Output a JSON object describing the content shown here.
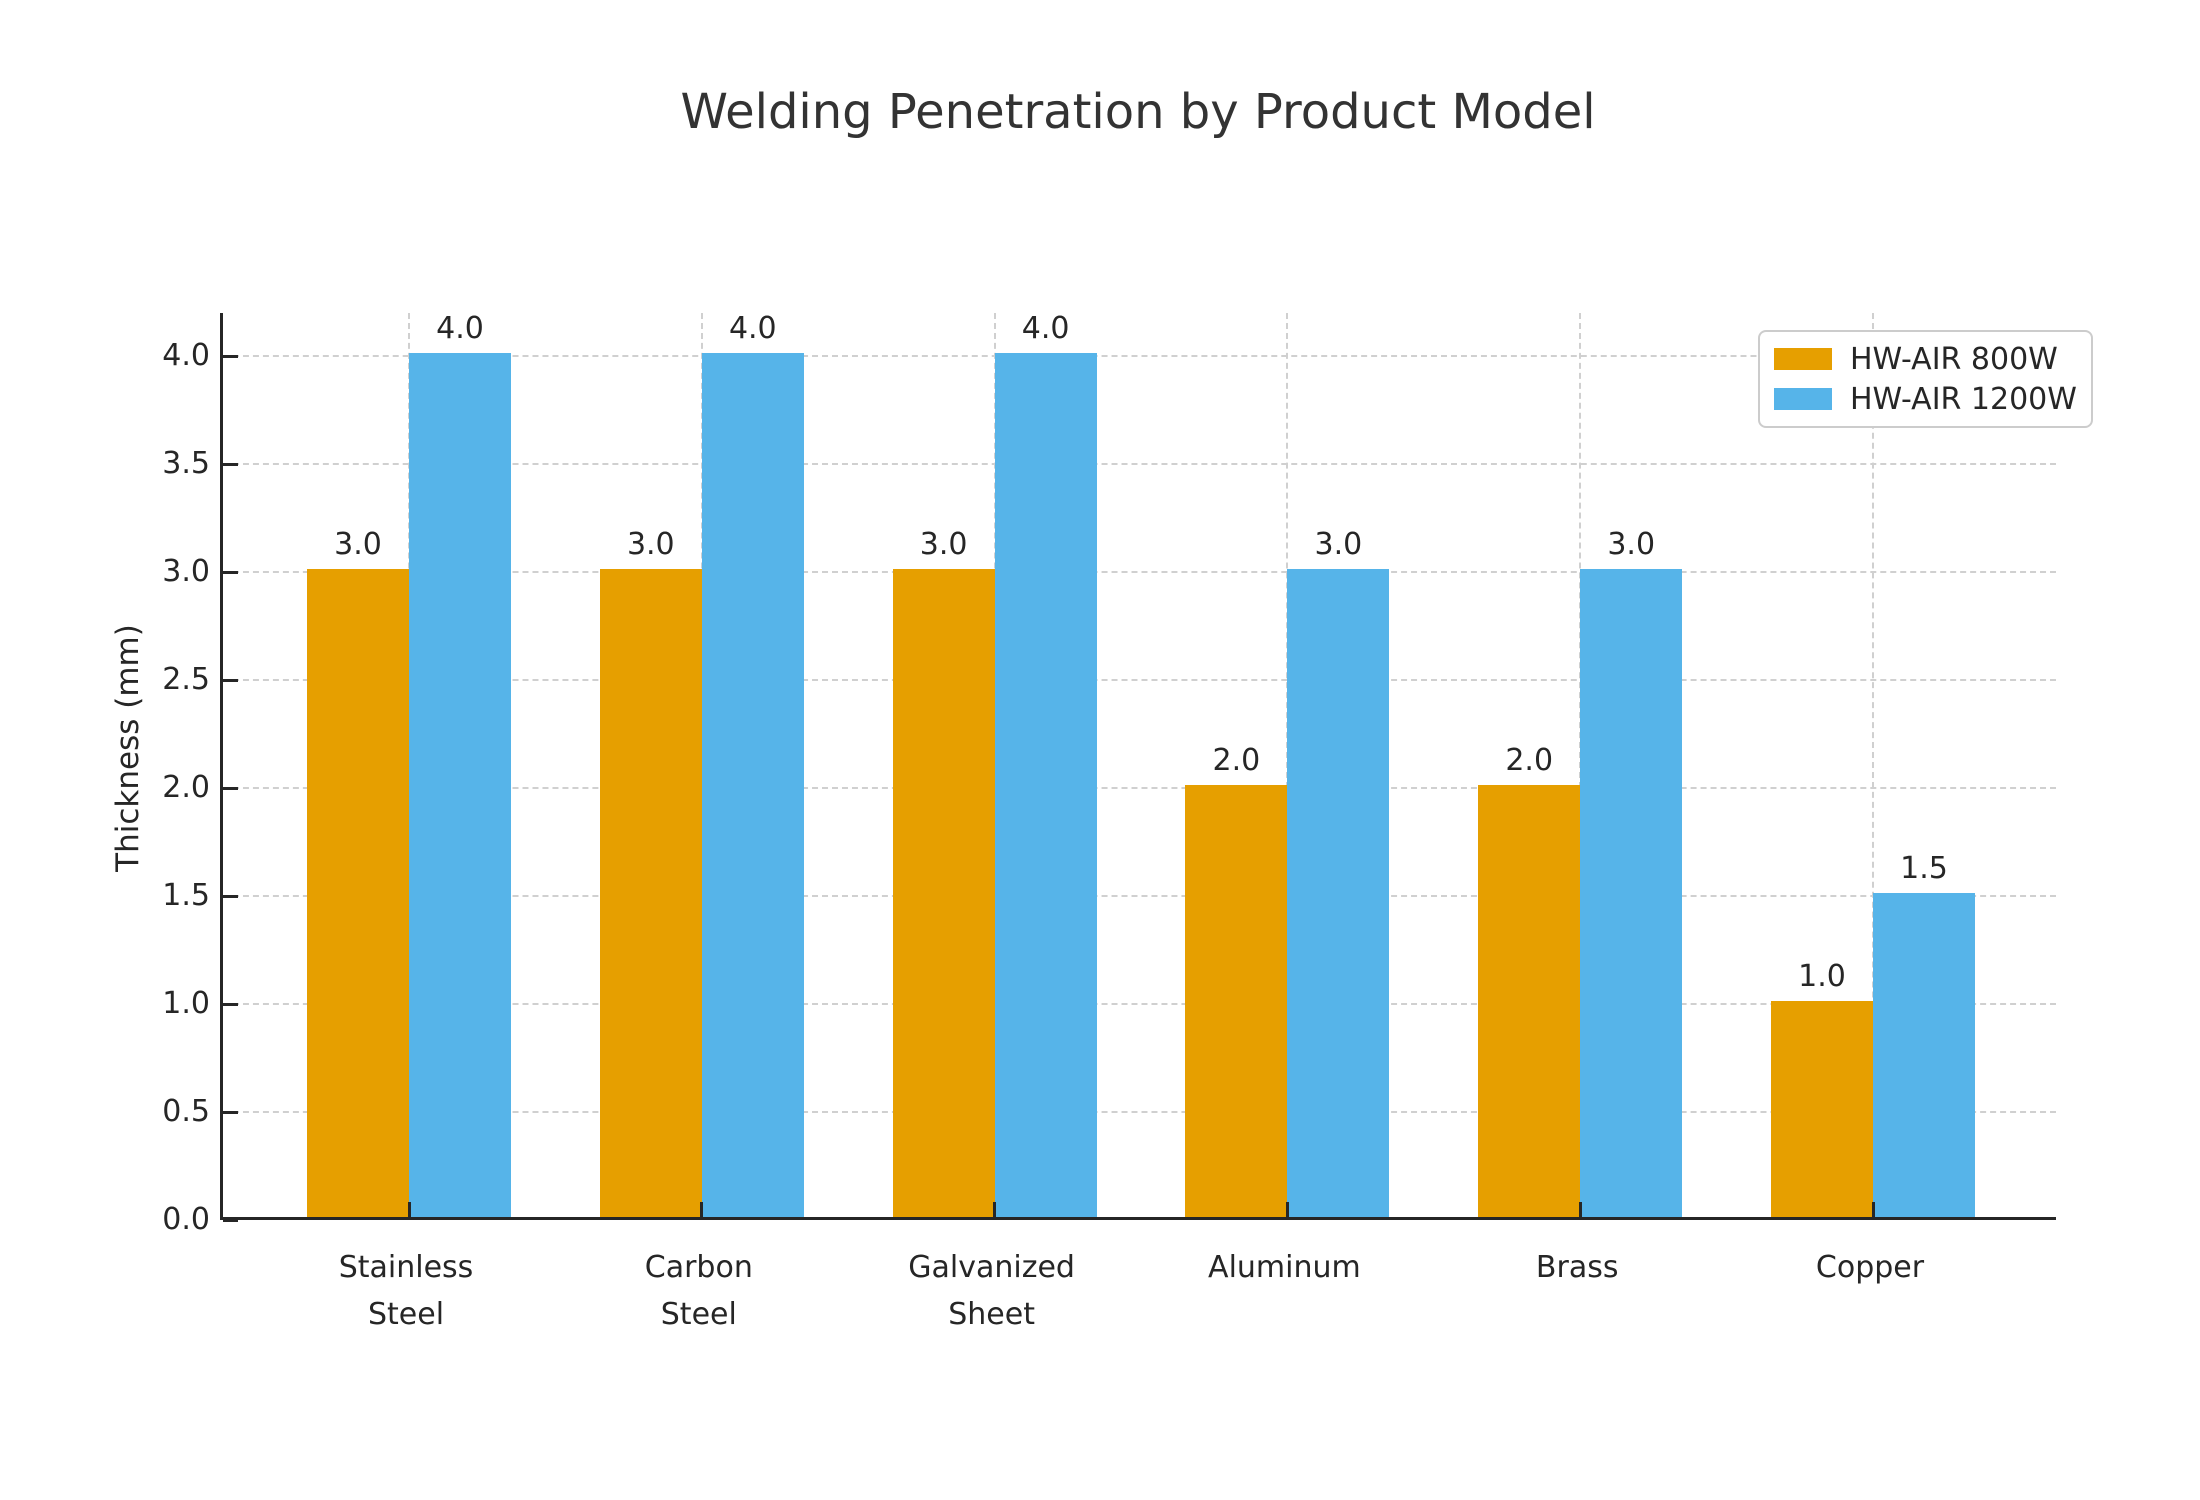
{
  "figure": {
    "background": "#ffffff"
  },
  "chart_data": {
    "type": "bar",
    "title": "Welding Penetration by Product Model",
    "ylabel": "Thickness (mm)",
    "xlabel": "",
    "categories": [
      "Stainless\nSteel",
      "Carbon\nSteel",
      "Galvanized\nSheet",
      "Aluminum",
      "Brass",
      "Copper"
    ],
    "series": [
      {
        "name": "HW-AIR 800W",
        "color": "#E69F00",
        "values": [
          3.0,
          3.0,
          3.0,
          2.0,
          2.0,
          1.0
        ]
      },
      {
        "name": "HW-AIR 1200W",
        "color": "#56B4E9",
        "values": [
          4.0,
          4.0,
          4.0,
          3.0,
          3.0,
          1.5
        ]
      }
    ],
    "value_labels": [
      [
        "3.0",
        "3.0",
        "3.0",
        "2.0",
        "2.0",
        "1.0"
      ],
      [
        "4.0",
        "4.0",
        "4.0",
        "3.0",
        "3.0",
        "1.5"
      ]
    ],
    "ylim": [
      0,
      4.2
    ],
    "yticks": [
      0.0,
      0.5,
      1.0,
      1.5,
      2.0,
      2.5,
      3.0,
      3.5,
      4.0
    ],
    "ytick_labels": [
      "0.0",
      "0.5",
      "1.0",
      "1.5",
      "2.0",
      "2.5",
      "3.0",
      "3.5",
      "4.0"
    ],
    "grid": {
      "horizontal": true,
      "vertical": true,
      "line_style": "dashed",
      "color": "#d0d0d0"
    },
    "legend": {
      "position": "upper-right",
      "entries": [
        "HW-AIR 800W",
        "HW-AIR 1200W"
      ]
    },
    "colors": {
      "axis": "#262626",
      "tick_text": "#262626",
      "title_text": "#333333"
    }
  }
}
